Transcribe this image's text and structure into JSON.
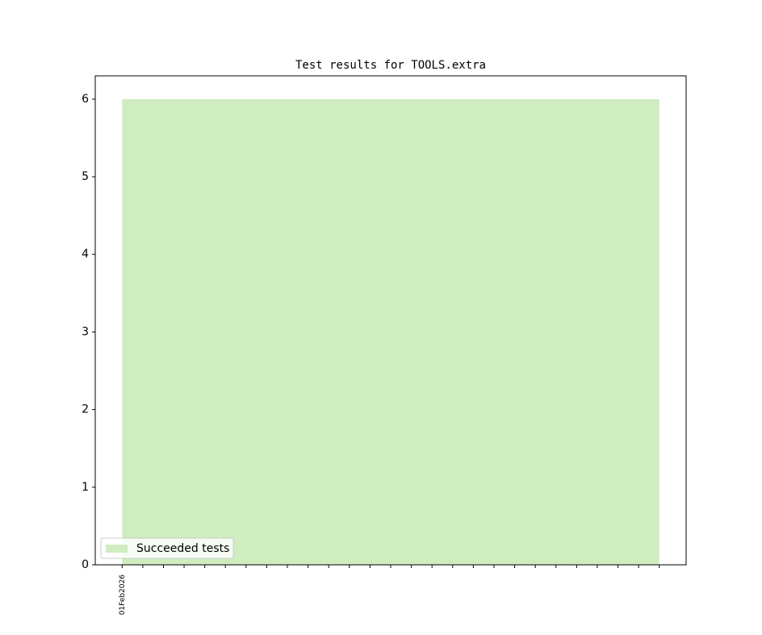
{
  "chart_data": {
    "type": "area",
    "title": "Test results for TOOLS.extra",
    "categories": [
      "01Feb2026",
      null,
      null,
      null,
      null,
      null,
      null,
      null,
      null,
      null,
      null,
      null,
      null,
      null,
      null,
      null,
      null,
      null,
      null,
      null,
      null,
      null,
      null,
      null,
      null,
      null,
      null
    ],
    "series": [
      {
        "name": "Succeeded tests",
        "color": "#cfedc0",
        "values": [
          6,
          6,
          6,
          6,
          6,
          6,
          6,
          6,
          6,
          6,
          6,
          6,
          6,
          6,
          6,
          6,
          6,
          6,
          6,
          6,
          6,
          6,
          6,
          6,
          6,
          6,
          6
        ]
      }
    ],
    "xlim": [
      -1.3,
      27.3
    ],
    "ylim": [
      0,
      6.3
    ],
    "yticks": [
      0,
      1,
      2,
      3,
      4,
      5,
      6
    ],
    "legend": "lower left"
  }
}
